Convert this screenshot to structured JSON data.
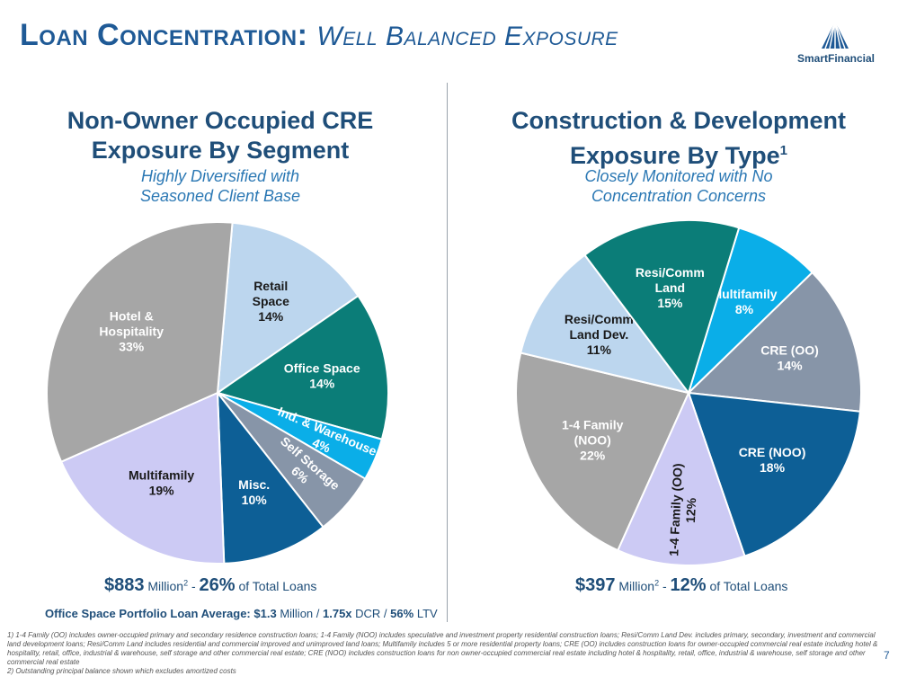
{
  "header": {
    "title_main": "Loan Concentration:",
    "title_sub": "Well Balanced Exposure",
    "logo_text": "SmartFinancial",
    "page_number": "7"
  },
  "left_panel": {
    "title_line1": "Non-Owner Occupied CRE",
    "title_line2": "Exposure By Segment",
    "subtitle_line1": "Highly Diversified with",
    "subtitle_line2": "Seasoned Client Base",
    "total_amount": "$883",
    "total_unit": "Million",
    "total_footnote": "2",
    "total_sep": " - ",
    "total_pct": "26%",
    "total_suffix": " of Total Loans",
    "office_label": "Office Space Portfolio Loan Average:",
    "office_avg": "$1.3",
    "office_avg_unit": " Million / ",
    "office_dcr": "1.75x",
    "office_dcr_unit": " DCR / ",
    "office_ltv": "56%",
    "office_ltv_unit": " LTV"
  },
  "right_panel": {
    "title_line1": "Construction & Development",
    "title_line2": "Exposure By Type",
    "title_footnote": "1",
    "subtitle_line1": "Closely Monitored with No",
    "subtitle_line2": "Concentration Concerns",
    "total_amount": "$397",
    "total_unit": "Million",
    "total_footnote": "2",
    "total_sep": " - ",
    "total_pct": "12%",
    "total_suffix": " of Total Loans"
  },
  "chart_data": [
    {
      "type": "pie",
      "title": "Non-Owner Occupied CRE Exposure By Segment",
      "start_angle_deg": 5,
      "slices": [
        {
          "label": [
            "Retail",
            "Space"
          ],
          "value": 14,
          "pct_label": "14%",
          "color": "#bcd6ee",
          "text_color": "#1a1a1a"
        },
        {
          "label": [
            "Office Space"
          ],
          "value": 14,
          "pct_label": "14%",
          "color": "#0b7d78",
          "text_color": "#ffffff"
        },
        {
          "label": [
            "Ind. & Warehouse"
          ],
          "value": 4,
          "pct_label": "4%",
          "color": "#0aaee8",
          "text_color": "#ffffff",
          "rotated": true
        },
        {
          "label": [
            "Self Storage"
          ],
          "value": 6,
          "pct_label": "6%",
          "color": "#8795a8",
          "text_color": "#ffffff",
          "rotated": true
        },
        {
          "label": [
            "Misc."
          ],
          "value": 10,
          "pct_label": "10%",
          "color": "#0d5f96",
          "text_color": "#ffffff"
        },
        {
          "label": [
            "Multifamily"
          ],
          "value": 19,
          "pct_label": "19%",
          "color": "#cccaf4",
          "text_color": "#1a1a1a"
        },
        {
          "label": [
            "Hotel &",
            "Hospitality"
          ],
          "value": 33,
          "pct_label": "33%",
          "color": "#a6a6a6",
          "text_color": "#ffffff"
        }
      ]
    },
    {
      "type": "pie",
      "title": "Construction & Development Exposure By Type",
      "start_angle_deg": 17,
      "slices": [
        {
          "label": [
            "Multifamily"
          ],
          "value": 8,
          "pct_label": "8%",
          "color": "#0aaee8",
          "text_color": "#ffffff"
        },
        {
          "label": [
            "CRE (OO)"
          ],
          "value": 14,
          "pct_label": "14%",
          "color": "#8795a8",
          "text_color": "#ffffff"
        },
        {
          "label": [
            "CRE (NOO)"
          ],
          "value": 18,
          "pct_label": "18%",
          "color": "#0d5f96",
          "text_color": "#ffffff"
        },
        {
          "label": [
            "1-4 Family (OO)"
          ],
          "value": 12,
          "pct_label": "12%",
          "color": "#cccaf4",
          "text_color": "#1a1a1a",
          "rotated": true
        },
        {
          "label": [
            "1-4 Family",
            "(NOO)"
          ],
          "value": 22,
          "pct_label": "22%",
          "color": "#a6a6a6",
          "text_color": "#ffffff"
        },
        {
          "label": [
            "Resi/Comm",
            "Land Dev."
          ],
          "value": 11,
          "pct_label": "11%",
          "color": "#bcd6ee",
          "text_color": "#1a1a1a"
        },
        {
          "label": [
            "Resi/Comm",
            "Land"
          ],
          "value": 15,
          "pct_label": "15%",
          "color": "#0b7d78",
          "text_color": "#ffffff"
        }
      ]
    }
  ],
  "footnotes": {
    "note1": "1)  1-4 Family (OO) includes owner-occupied primary and secondary residence construction loans; 1-4 Family (NOO) includes speculative and investment property residential construction loans; Resi/Comm Land Dev. includes primary, secondary, investment and commercial land development loans; Resi/Comm Land includes residential and commercial improved and unimproved  land loans; Multifamily includes 5 or more residential property loans; CRE (OO) includes construction loans for owner-occupied commercial real estate including hotel & hospitality, retail, office, industrial & warehouse, self storage and other commercial real estate; CRE (NOO) includes construction loans for non owner-occupied commercial real estate including hotel & hospitality, retail, office, industrial & warehouse, self storage and other commercial real estate",
    "note2": "2)  Outstanding principal balance shown which excludes amortized costs"
  }
}
